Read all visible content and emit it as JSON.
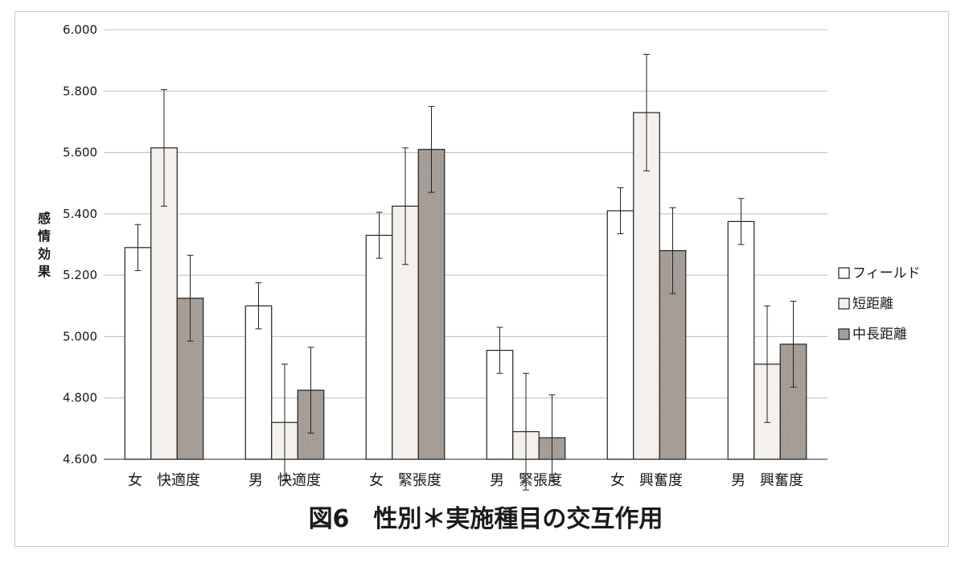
{
  "chart_data": {
    "type": "bar",
    "title": "図6　性別＊実施種目の交互作用",
    "ylabel": "感情効果",
    "xlabel": "",
    "ylim": [
      4.6,
      6.0
    ],
    "yticks": [
      "4.600",
      "4.800",
      "5.000",
      "5.200",
      "5.400",
      "5.600",
      "5.800",
      "6.000"
    ],
    "grid": true,
    "legend_position": "right",
    "categories": [
      {
        "gender": "女",
        "measure": "快適度"
      },
      {
        "gender": "男",
        "measure": "快適度"
      },
      {
        "gender": "女",
        "measure": "緊張度"
      },
      {
        "gender": "男",
        "measure": "緊張度"
      },
      {
        "gender": "女",
        "measure": "興奮度"
      },
      {
        "gender": "男",
        "measure": "興奮度"
      }
    ],
    "series": [
      {
        "name": "フィールド",
        "color": "#ffffff",
        "values": [
          5.29,
          5.1,
          5.33,
          4.955,
          5.41,
          5.375
        ],
        "errors": [
          0.075,
          0.075,
          0.075,
          0.075,
          0.075,
          0.075
        ]
      },
      {
        "name": "短距離",
        "color": "#f4f1ec",
        "values": [
          5.615,
          4.72,
          5.425,
          4.69,
          5.73,
          4.91
        ],
        "errors": [
          0.19,
          0.19,
          0.19,
          0.19,
          0.19,
          0.19
        ]
      },
      {
        "name": "中長距離",
        "color": "#aaa29b",
        "values": [
          5.125,
          4.825,
          5.61,
          4.67,
          5.28,
          4.975
        ],
        "errors": [
          0.14,
          0.14,
          0.14,
          0.14,
          0.14,
          0.14
        ]
      }
    ]
  }
}
